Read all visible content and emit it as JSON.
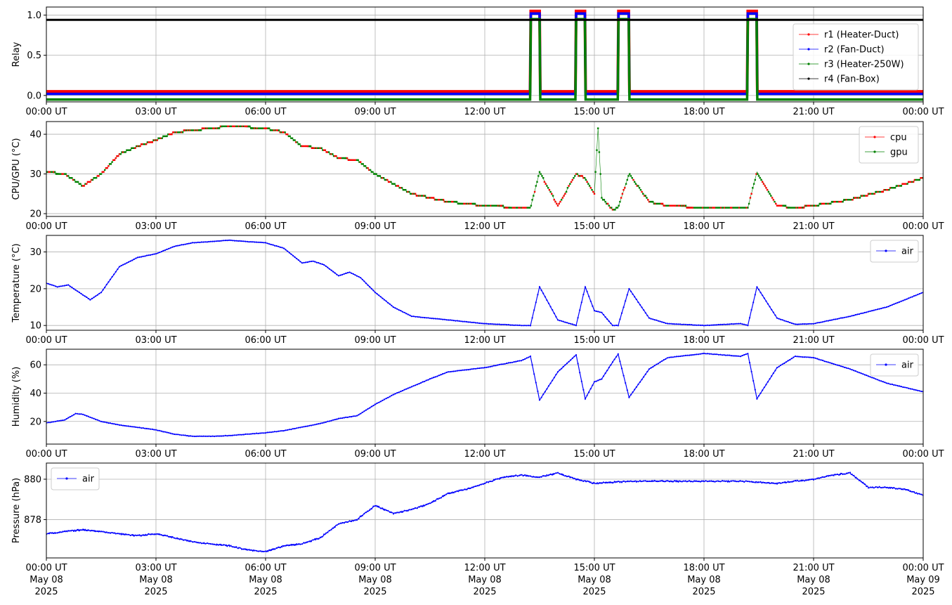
{
  "x_ticks": [
    "00:00 UT",
    "03:00 UT",
    "06:00 UT",
    "09:00 UT",
    "12:00 UT",
    "15:00 UT",
    "18:00 UT",
    "21:00 UT",
    "00:00 UT"
  ],
  "x_dates": [
    "May 08",
    "May 08",
    "May 08",
    "May 08",
    "May 08",
    "May 08",
    "May 08",
    "May 08",
    "May 09"
  ],
  "x_years": [
    "2025",
    "2025",
    "2025",
    "2025",
    "2025",
    "2025",
    "2025",
    "2025",
    "2025"
  ],
  "colors": {
    "r1": "#ff0000",
    "r2": "#0000ff",
    "r3": "#008000",
    "r4": "#000000",
    "cpu": "#ff0000",
    "gpu": "#008000",
    "air": "#0000ff",
    "grid": "#b0b0b0"
  },
  "chart_data": [
    {
      "id": "relay",
      "type": "line",
      "ylabel": "Relay",
      "ylim": [
        -0.08,
        1.1
      ],
      "yticks": [
        0.0,
        0.5,
        1.0
      ],
      "ytick_labels": [
        "0.0",
        "0.5",
        "1.0"
      ],
      "legend_position": "top-right",
      "grid": true,
      "series": [
        {
          "name": "r1 (Heater-Duct)",
          "color": "#ff0000",
          "offset": 0.05
        },
        {
          "name": "r2 (Fan-Duct)",
          "color": "#0000ff",
          "offset": 0.02
        },
        {
          "name": "r3 (Heater-250W)",
          "color": "#008000",
          "offset": -0.05
        },
        {
          "name": "r4 (Fan-Box)",
          "color": "#000000",
          "constant": 0.94
        }
      ],
      "on_intervals_hours": [
        [
          13.25,
          13.5
        ],
        [
          14.5,
          14.75
        ],
        [
          15.65,
          15.95
        ],
        [
          19.2,
          19.45
        ]
      ]
    },
    {
      "id": "cpu",
      "type": "line",
      "ylabel": "CPU/GPU (°C)",
      "ylim": [
        19.3,
        43.2
      ],
      "yticks": [
        20,
        30,
        40
      ],
      "ytick_labels": [
        "20",
        "30",
        "40"
      ],
      "legend_position": "top-right",
      "grid": true,
      "series": [
        {
          "name": "cpu",
          "color": "#ff0000",
          "x": [
            0,
            0.5,
            1.0,
            1.5,
            2.0,
            2.5,
            3.0,
            3.5,
            4.0,
            4.5,
            5.0,
            5.5,
            6.0,
            6.5,
            7.0,
            7.5,
            8.0,
            8.5,
            9.0,
            9.5,
            10.0,
            11.0,
            12.0,
            13.0,
            13.25,
            13.5,
            14.0,
            14.5,
            14.75,
            15.0,
            15.1,
            15.2,
            15.5,
            15.65,
            15.95,
            16.5,
            17.0,
            18.0,
            19.0,
            19.2,
            19.45,
            20.0,
            20.5,
            21.0,
            22.0,
            23.0,
            24.0
          ],
          "y": [
            30.5,
            30.0,
            27.0,
            30.0,
            35.0,
            37.0,
            38.5,
            40.5,
            41.0,
            41.5,
            42.0,
            41.8,
            41.5,
            40.5,
            37.0,
            36.5,
            34.0,
            33.5,
            30.0,
            27.5,
            25.0,
            23.0,
            22.0,
            21.5,
            21.5,
            30.5,
            22.0,
            30.0,
            29.0,
            25.0,
            41.5,
            24.0,
            21.0,
            21.5,
            30.0,
            23.0,
            22.0,
            21.5,
            21.5,
            21.5,
            30.5,
            22.0,
            21.5,
            22.0,
            23.5,
            26.0,
            29.0
          ]
        },
        {
          "name": "gpu",
          "color": "#008000"
        }
      ]
    },
    {
      "id": "temp",
      "type": "line",
      "ylabel": "Temperature (°C)",
      "ylim": [
        8.7,
        34.5
      ],
      "yticks": [
        10,
        20,
        30
      ],
      "ytick_labels": [
        "10",
        "20",
        "30"
      ],
      "legend_position": "top-right",
      "grid": true,
      "series": [
        {
          "name": "air",
          "color": "#0000ff",
          "x": [
            0,
            0.3,
            0.6,
            0.9,
            1.2,
            1.5,
            2.0,
            2.5,
            3.0,
            3.5,
            4.0,
            4.5,
            5.0,
            5.5,
            6.0,
            6.5,
            7.0,
            7.3,
            7.6,
            8.0,
            8.3,
            8.6,
            9.0,
            9.5,
            10.0,
            11.0,
            12.0,
            13.0,
            13.25,
            13.5,
            14.0,
            14.5,
            14.75,
            15.0,
            15.2,
            15.5,
            15.65,
            15.95,
            16.5,
            17.0,
            18.0,
            19.0,
            19.2,
            19.45,
            20.0,
            20.5,
            21.0,
            22.0,
            23.0,
            24.0
          ],
          "y": [
            21.5,
            20.5,
            21.0,
            19.0,
            17.0,
            19.0,
            26.0,
            28.5,
            29.5,
            31.5,
            32.5,
            32.8,
            33.2,
            32.8,
            32.5,
            31.0,
            27.0,
            27.5,
            26.5,
            23.5,
            24.5,
            23.0,
            19.0,
            15.0,
            12.5,
            11.5,
            10.5,
            10.0,
            10.0,
            20.5,
            11.5,
            10.0,
            20.5,
            14.0,
            13.5,
            10.0,
            10.0,
            20.0,
            12.0,
            10.5,
            10.0,
            10.5,
            10.0,
            20.5,
            12.0,
            10.3,
            10.5,
            12.5,
            15.0,
            19.0
          ]
        }
      ]
    },
    {
      "id": "hum",
      "type": "line",
      "ylabel": "Humidity (%)",
      "ylim": [
        4,
        71
      ],
      "yticks": [
        20,
        40,
        60
      ],
      "ytick_labels": [
        "20",
        "40",
        "60"
      ],
      "legend_position": "top-right",
      "grid": true,
      "series": [
        {
          "name": "air",
          "color": "#0000ff",
          "x": [
            0,
            0.5,
            0.8,
            1.0,
            1.5,
            2.0,
            3.0,
            3.5,
            4.0,
            4.5,
            5.0,
            5.5,
            6.0,
            6.5,
            7.0,
            7.5,
            8.0,
            8.5,
            9.0,
            9.5,
            10.0,
            10.5,
            11.0,
            12.0,
            13.0,
            13.25,
            13.5,
            14.0,
            14.5,
            14.75,
            15.0,
            15.2,
            15.5,
            15.65,
            15.95,
            16.5,
            17.0,
            18.0,
            19.0,
            19.2,
            19.45,
            20.0,
            20.5,
            21.0,
            22.0,
            23.0,
            24.0
          ],
          "y": [
            19.0,
            21.0,
            25.5,
            25.0,
            20.0,
            17.5,
            14.0,
            11.0,
            9.5,
            9.5,
            10.0,
            11.0,
            12.0,
            13.5,
            16.0,
            18.5,
            22.0,
            24.0,
            32.0,
            39.0,
            44.5,
            50.0,
            55.0,
            58.0,
            63.0,
            66.0,
            35.0,
            55.0,
            67.0,
            36.0,
            48.0,
            50.0,
            62.0,
            67.5,
            37.0,
            57.0,
            65.0,
            68.0,
            66.0,
            68.0,
            36.0,
            58.0,
            66.0,
            65.0,
            57.0,
            47.0,
            41.0
          ]
        }
      ]
    },
    {
      "id": "press",
      "type": "line",
      "ylabel": "Pressure (hPa)",
      "ylim": [
        876.1,
        880.8
      ],
      "yticks": [
        878,
        880
      ],
      "ytick_labels": [
        "878",
        "880"
      ],
      "legend_position": "top-left",
      "grid": true,
      "series": [
        {
          "name": "air",
          "color": "#0000ff",
          "x": [
            0,
            0.5,
            1.0,
            1.5,
            2.0,
            2.5,
            3.0,
            3.5,
            4.0,
            4.5,
            5.0,
            5.5,
            6.0,
            6.5,
            7.0,
            7.5,
            8.0,
            8.5,
            9.0,
            9.5,
            10.0,
            10.5,
            11.0,
            11.5,
            12.0,
            12.5,
            13.0,
            13.5,
            14.0,
            14.5,
            15.0,
            16.0,
            17.0,
            18.0,
            19.0,
            20.0,
            21.0,
            21.5,
            22.0,
            22.5,
            23.0,
            23.5,
            24.0
          ],
          "y": [
            877.3,
            877.4,
            877.5,
            877.4,
            877.3,
            877.2,
            877.3,
            877.1,
            876.9,
            876.8,
            876.7,
            876.5,
            876.4,
            876.7,
            876.8,
            877.1,
            877.8,
            878.0,
            878.7,
            878.3,
            878.5,
            878.8,
            879.3,
            879.5,
            879.8,
            880.1,
            880.2,
            880.1,
            880.3,
            880.0,
            879.8,
            879.9,
            879.9,
            879.9,
            879.9,
            879.8,
            880.0,
            880.2,
            880.3,
            879.6,
            879.6,
            879.5,
            879.2
          ]
        }
      ]
    }
  ]
}
